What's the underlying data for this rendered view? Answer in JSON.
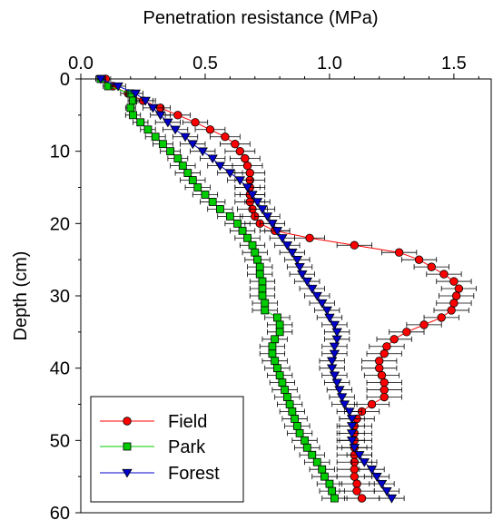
{
  "chart_data": {
    "type": "line",
    "title": "",
    "xlabel": "Penetration resistance (MPa)",
    "ylabel": "Depth (cm)",
    "xlim": [
      0,
      1.65
    ],
    "ylim": [
      0,
      60
    ],
    "y_inverted": true,
    "x_axis_position": "top",
    "x_ticks": [
      "0.0",
      "0.5",
      "1.0",
      "1.5"
    ],
    "y_ticks": [
      "0",
      "10",
      "20",
      "30",
      "40",
      "50",
      "60"
    ],
    "grid": false,
    "legend_position": "bottom-left",
    "error_bars": "horizontal",
    "series": [
      {
        "name": "Field",
        "color": "#ff0000",
        "marker": "circle",
        "depth": [
          0,
          1,
          2,
          3,
          4,
          5,
          6,
          7,
          8,
          9,
          10,
          11,
          12,
          13,
          14,
          15,
          16,
          17,
          18,
          19,
          20,
          21,
          22,
          23,
          24,
          25,
          26,
          27,
          28,
          29,
          30,
          31,
          32,
          33,
          34,
          35,
          36,
          37,
          38,
          39,
          40,
          41,
          42,
          43,
          44,
          45,
          46,
          47,
          48,
          49,
          50,
          51,
          52,
          53,
          54,
          55,
          56,
          57,
          58
        ],
        "x": [
          0.1,
          0.13,
          0.19,
          0.25,
          0.32,
          0.39,
          0.46,
          0.52,
          0.58,
          0.62,
          0.64,
          0.66,
          0.67,
          0.68,
          0.68,
          0.68,
          0.68,
          0.68,
          0.69,
          0.7,
          0.72,
          0.78,
          0.92,
          1.1,
          1.28,
          1.36,
          1.41,
          1.46,
          1.5,
          1.52,
          1.51,
          1.5,
          1.49,
          1.45,
          1.38,
          1.31,
          1.26,
          1.23,
          1.22,
          1.2,
          1.2,
          1.21,
          1.22,
          1.22,
          1.22,
          1.17,
          1.13,
          1.11,
          1.1,
          1.1,
          1.1,
          1.1,
          1.1,
          1.1,
          1.1,
          1.1,
          1.11,
          1.11,
          1.13
        ],
        "error": [
          0.02,
          0.02,
          0.03,
          0.04,
          0.04,
          0.05,
          0.05,
          0.06,
          0.06,
          0.06,
          0.06,
          0.06,
          0.06,
          0.06,
          0.06,
          0.06,
          0.06,
          0.06,
          0.06,
          0.06,
          0.06,
          0.06,
          0.06,
          0.07,
          0.07,
          0.07,
          0.07,
          0.07,
          0.07,
          0.07,
          0.07,
          0.07,
          0.07,
          0.07,
          0.07,
          0.07,
          0.07,
          0.07,
          0.07,
          0.07,
          0.07,
          0.07,
          0.07,
          0.07,
          0.07,
          0.07,
          0.07,
          0.07,
          0.07,
          0.07,
          0.07,
          0.07,
          0.07,
          0.07,
          0.07,
          0.07,
          0.07,
          0.07,
          0.07
        ]
      },
      {
        "name": "Park",
        "color": "#00cc00",
        "marker": "square",
        "depth": [
          0,
          1,
          2,
          3,
          4,
          5,
          6,
          7,
          8,
          9,
          10,
          11,
          12,
          13,
          14,
          15,
          16,
          17,
          18,
          19,
          20,
          21,
          22,
          23,
          24,
          25,
          26,
          27,
          28,
          29,
          30,
          31,
          32,
          33,
          34,
          35,
          36,
          37,
          38,
          39,
          40,
          41,
          42,
          43,
          44,
          45,
          46,
          47,
          48,
          49,
          50,
          51,
          52,
          53,
          54,
          55,
          56,
          57,
          58
        ],
        "x": [
          0.08,
          0.11,
          0.2,
          0.21,
          0.2,
          0.21,
          0.24,
          0.27,
          0.3,
          0.33,
          0.36,
          0.39,
          0.41,
          0.43,
          0.45,
          0.47,
          0.5,
          0.53,
          0.56,
          0.6,
          0.63,
          0.65,
          0.67,
          0.69,
          0.7,
          0.71,
          0.72,
          0.72,
          0.73,
          0.73,
          0.73,
          0.74,
          0.74,
          0.79,
          0.8,
          0.8,
          0.78,
          0.77,
          0.77,
          0.78,
          0.79,
          0.8,
          0.81,
          0.82,
          0.83,
          0.84,
          0.85,
          0.86,
          0.87,
          0.88,
          0.9,
          0.91,
          0.93,
          0.95,
          0.97,
          0.98,
          1.0,
          1.01,
          1.02
        ],
        "error": [
          0.02,
          0.02,
          0.02,
          0.02,
          0.02,
          0.03,
          0.03,
          0.03,
          0.04,
          0.04,
          0.04,
          0.04,
          0.05,
          0.05,
          0.05,
          0.05,
          0.05,
          0.05,
          0.05,
          0.05,
          0.05,
          0.05,
          0.05,
          0.05,
          0.05,
          0.05,
          0.05,
          0.05,
          0.05,
          0.05,
          0.05,
          0.05,
          0.05,
          0.05,
          0.05,
          0.05,
          0.05,
          0.05,
          0.05,
          0.05,
          0.05,
          0.05,
          0.05,
          0.05,
          0.05,
          0.05,
          0.05,
          0.05,
          0.05,
          0.05,
          0.05,
          0.05,
          0.05,
          0.05,
          0.05,
          0.05,
          0.05,
          0.05,
          0.05
        ]
      },
      {
        "name": "Forest",
        "color": "#0000cc",
        "marker": "triangle-down",
        "depth": [
          0,
          1,
          2,
          3,
          4,
          5,
          6,
          7,
          8,
          9,
          10,
          11,
          12,
          13,
          14,
          15,
          16,
          17,
          18,
          19,
          20,
          21,
          22,
          23,
          24,
          25,
          26,
          27,
          28,
          29,
          30,
          31,
          32,
          33,
          34,
          35,
          36,
          37,
          38,
          39,
          40,
          41,
          42,
          43,
          44,
          45,
          46,
          47,
          48,
          49,
          50,
          51,
          52,
          53,
          54,
          55,
          56,
          57,
          58
        ],
        "x": [
          0.08,
          0.15,
          0.22,
          0.26,
          0.29,
          0.32,
          0.35,
          0.38,
          0.42,
          0.45,
          0.49,
          0.53,
          0.56,
          0.6,
          0.64,
          0.67,
          0.69,
          0.71,
          0.73,
          0.75,
          0.77,
          0.79,
          0.81,
          0.83,
          0.85,
          0.87,
          0.88,
          0.89,
          0.91,
          0.93,
          0.95,
          0.97,
          0.99,
          1.0,
          1.02,
          1.03,
          1.03,
          1.02,
          1.02,
          1.01,
          1.01,
          1.02,
          1.03,
          1.04,
          1.05,
          1.06,
          1.08,
          1.09,
          1.09,
          1.09,
          1.09,
          1.1,
          1.12,
          1.14,
          1.17,
          1.19,
          1.21,
          1.23,
          1.25
        ],
        "error": [
          0.02,
          0.03,
          0.03,
          0.04,
          0.04,
          0.04,
          0.05,
          0.05,
          0.05,
          0.05,
          0.05,
          0.05,
          0.05,
          0.05,
          0.05,
          0.05,
          0.05,
          0.05,
          0.05,
          0.05,
          0.05,
          0.05,
          0.05,
          0.05,
          0.05,
          0.05,
          0.05,
          0.05,
          0.05,
          0.05,
          0.05,
          0.05,
          0.05,
          0.05,
          0.05,
          0.05,
          0.05,
          0.05,
          0.05,
          0.05,
          0.05,
          0.05,
          0.05,
          0.05,
          0.05,
          0.05,
          0.05,
          0.05,
          0.05,
          0.05,
          0.05,
          0.05,
          0.05,
          0.05,
          0.05,
          0.05,
          0.05,
          0.05,
          0.05
        ]
      }
    ]
  }
}
